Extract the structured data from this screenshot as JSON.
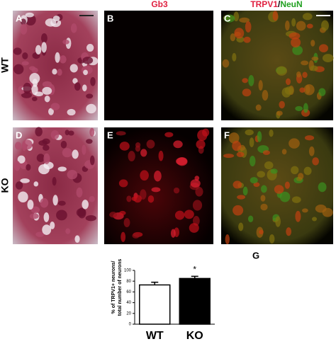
{
  "header": {
    "gb3": "Gb3",
    "trpv1": "TRPV1",
    "slash": "/",
    "neun": "NeuN"
  },
  "rows": [
    "WT",
    "KO"
  ],
  "panels": [
    "A",
    "B",
    "C",
    "D",
    "E",
    "F",
    "G"
  ],
  "chart_data": {
    "type": "bar",
    "y_label": [
      "% of TRPV1+ neurons/",
      "total number of neurons"
    ],
    "categories": [
      "WT",
      "KO"
    ],
    "values": [
      73,
      85
    ],
    "errors": [
      5,
      4
    ],
    "colors": [
      "#ffffff",
      "#000000"
    ],
    "annotation": "*",
    "ylim": [
      0,
      100
    ],
    "yticks": [
      0,
      20,
      40,
      60,
      80,
      100
    ]
  }
}
